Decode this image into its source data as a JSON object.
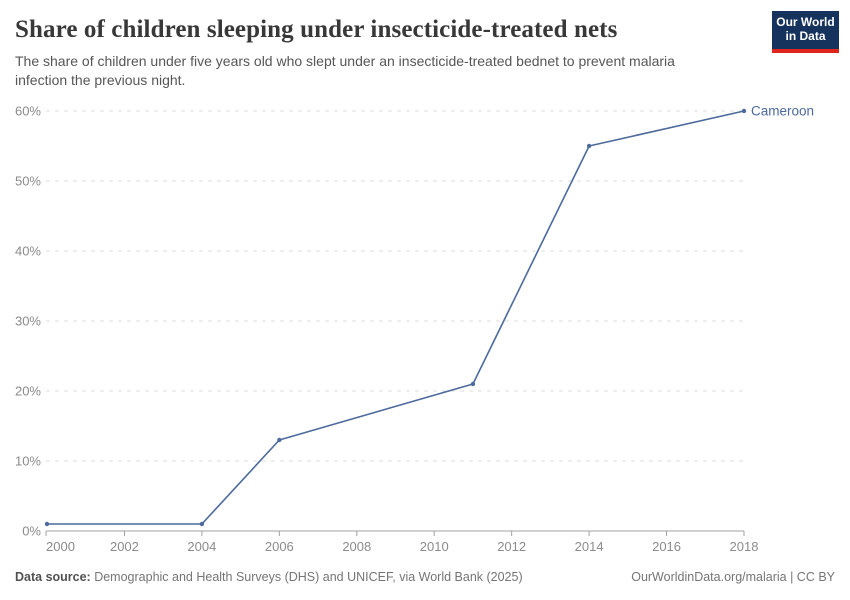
{
  "header": {
    "title": "Share of children sleeping under insecticide-treated nets",
    "subtitle": "The share of children under five years old who slept under an insecticide-treated bednet to prevent malaria infection the previous night.",
    "logo": {
      "line1": "Our World",
      "line2": "in Data"
    }
  },
  "chart_data": {
    "type": "line",
    "title": "Share of children sleeping under insecticide-treated nets",
    "entity_label": "Cameroon",
    "x": [
      2000,
      2004,
      2006,
      2011,
      2014,
      2018
    ],
    "series": [
      {
        "name": "Cameroon",
        "color": "#4c6a9c",
        "values": [
          1,
          1,
          13,
          21,
          55,
          60
        ]
      }
    ],
    "xlim": [
      2000,
      2018
    ],
    "ylim": [
      0,
      60
    ],
    "xticks": [
      2000,
      2002,
      2004,
      2006,
      2008,
      2010,
      2012,
      2014,
      2016,
      2018
    ],
    "yticks": [
      0,
      10,
      20,
      30,
      40,
      50,
      60
    ],
    "ytick_suffix": "%",
    "grid": "dashed-horizontal",
    "legend_position": "line-end-label"
  },
  "colors": {
    "line": "#4c6a9c",
    "grid": "#dddddd",
    "axis": "#a0a0a0",
    "tick_text": "#8b8b8b",
    "entity_text": "#4c6a9c",
    "logo_bg": "#15335d",
    "logo_red": "#e0261c"
  },
  "footer": {
    "datasource_label": "Data source:",
    "datasource_text": " Demographic and Health Surveys (DHS) and UNICEF, via World Bank (2025)",
    "link_text": "OurWorldinData.org/malaria | CC BY"
  }
}
